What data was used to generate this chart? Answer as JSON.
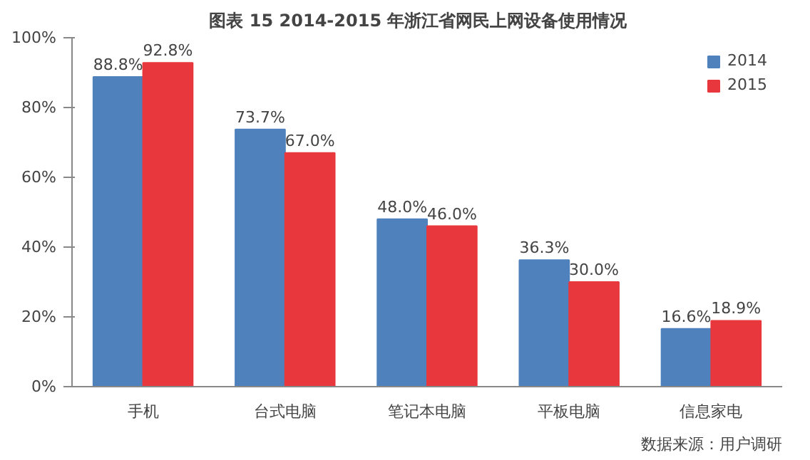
{
  "chart_data": {
    "type": "bar",
    "title": "图表 15    2014-2015 年浙江省网民上网设备使用情况",
    "categories": [
      "手机",
      "台式电脑",
      "笔记本电脑",
      "平板电脑",
      "信息家电"
    ],
    "series": [
      {
        "name": "2014",
        "color": "#4f81bd",
        "values": [
          88.8,
          73.7,
          48.0,
          36.3,
          16.6
        ],
        "value_labels": [
          "88.8%",
          "73.7%",
          "48.0%",
          "36.3%",
          "16.6%"
        ]
      },
      {
        "name": "2015",
        "color": "#e8383d",
        "values": [
          92.8,
          67.0,
          46.0,
          30.0,
          18.9
        ],
        "value_labels": [
          "92.8%",
          "67.0%",
          "46.0%",
          "30.0%",
          "18.9%"
        ]
      }
    ],
    "ylim": [
      0,
      100
    ],
    "yticks": [
      {
        "value": 0,
        "label": "0%"
      },
      {
        "value": 20,
        "label": "20%"
      },
      {
        "value": 40,
        "label": "40%"
      },
      {
        "value": 60,
        "label": "60%"
      },
      {
        "value": 80,
        "label": "80%"
      },
      {
        "value": 100,
        "label": "100%"
      }
    ],
    "grid": false,
    "legend": "top right",
    "annotations": [
      "数据来源：用户调研"
    ]
  }
}
